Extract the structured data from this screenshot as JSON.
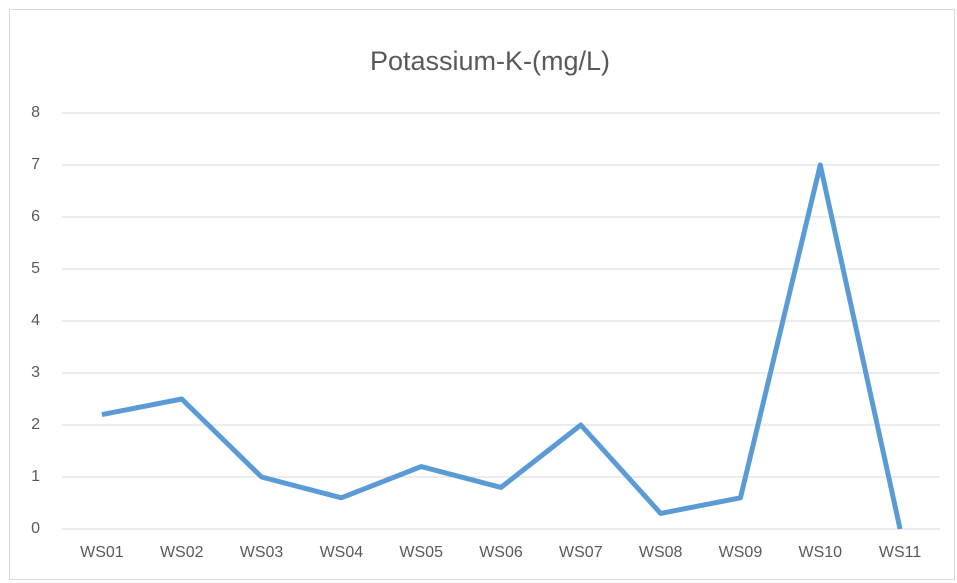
{
  "chart_data": {
    "type": "line",
    "title": "Potassium-K-(mg/L)",
    "categories": [
      "WS01",
      "WS02",
      "WS03",
      "WS04",
      "WS05",
      "WS06",
      "WS07",
      "WS08",
      "WS09",
      "WS10",
      "WS11"
    ],
    "series": [
      {
        "name": "Potassium-K-(mg/L)",
        "color": "#5b9bd5",
        "values": [
          2.2,
          2.5,
          1.0,
          0.6,
          1.2,
          0.8,
          2.0,
          0.3,
          0.6,
          7.0,
          0.0
        ]
      }
    ],
    "ylim": [
      0,
      8
    ],
    "yticks": [
      0,
      1,
      2,
      3,
      4,
      5,
      6,
      7,
      8
    ],
    "grid": true
  }
}
